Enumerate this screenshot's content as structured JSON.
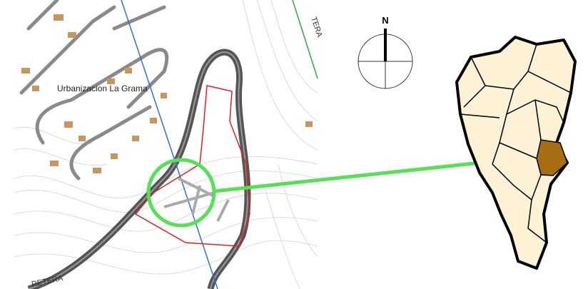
{
  "map": {
    "place_label": "Urbanizacion La Grama",
    "north_label": "N",
    "road_label_top": "TERA",
    "road_label_bottom": "RETERA"
  }
}
